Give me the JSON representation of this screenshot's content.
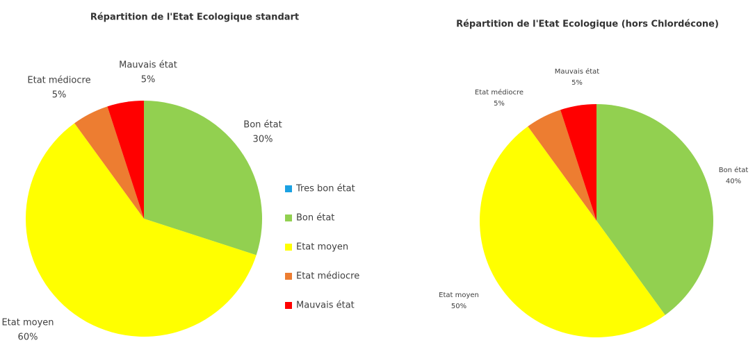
{
  "chart_data": [
    {
      "type": "pie",
      "title": "Répartition de l'Etat Ecologique standart",
      "categories": [
        "Tres bon état",
        "Bon état",
        "Etat moyen",
        "Etat médiocre",
        "Mauvais état"
      ],
      "values": [
        0,
        30,
        60,
        5,
        5
      ],
      "value_labels": [
        null,
        "30%",
        "60%",
        "5%",
        "5%"
      ],
      "colors": [
        "#1ba1e2",
        "#92d050",
        "#ffff00",
        "#ed7d31",
        "#ff0000"
      ],
      "legend": true
    },
    {
      "type": "pie",
      "title": "Répartition de l'Etat Ecologique (hors Chlordécone)",
      "categories": [
        "Tres bon état",
        "Bon état",
        "Etat moyen",
        "Etat médiocre",
        "Mauvais état"
      ],
      "values": [
        0,
        40,
        50,
        5,
        5
      ],
      "value_labels": [
        null,
        "40%",
        "50%",
        "5%",
        "5%"
      ],
      "colors": [
        "#1ba1e2",
        "#92d050",
        "#ffff00",
        "#ed7d31",
        "#ff0000"
      ],
      "legend": false
    }
  ]
}
